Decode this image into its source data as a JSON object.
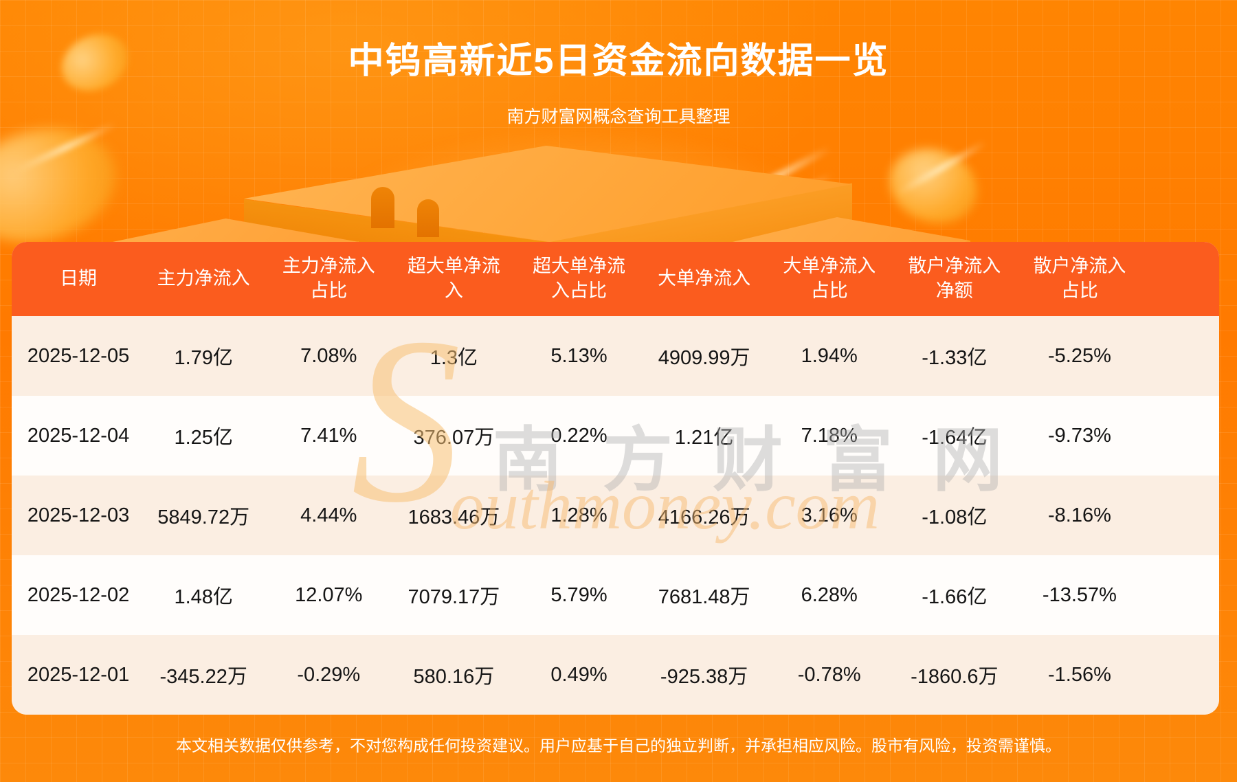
{
  "page": {
    "title": "中钨高新近5日资金流向数据一览",
    "subtitle": "南方财富网概念查询工具整理",
    "disclaimer": "本文相关数据仅供参考，不对您构成任何投资建议。用户应基于自己的独立判断，并承担相应风险。股市有风险，投资需谨慎。"
  },
  "watermark": {
    "initial": "S",
    "cn": "南方财富网",
    "en": "outhmoney.com"
  },
  "chart_data": {
    "type": "table",
    "title": "中钨高新近5日资金流向数据一览",
    "columns": [
      "日期",
      "主力净流入",
      "主力净流入占比",
      "超大单净流入",
      "超大单净流入占比",
      "大单净流入",
      "大单净流入占比",
      "散户净流入净额",
      "散户净流入占比"
    ],
    "rows": [
      [
        "2025-12-05",
        "1.79亿",
        "7.08%",
        "1.3亿",
        "5.13%",
        "4909.99万",
        "1.94%",
        "-1.33亿",
        "-5.25%"
      ],
      [
        "2025-12-04",
        "1.25亿",
        "7.41%",
        "376.07万",
        "0.22%",
        "1.21亿",
        "7.18%",
        "-1.64亿",
        "-9.73%"
      ],
      [
        "2025-12-03",
        "5849.72万",
        "4.44%",
        "1683.46万",
        "1.28%",
        "4166.26万",
        "3.16%",
        "-1.08亿",
        "-8.16%"
      ],
      [
        "2025-12-02",
        "1.48亿",
        "12.07%",
        "7079.17万",
        "5.79%",
        "7681.48万",
        "6.28%",
        "-1.66亿",
        "-13.57%"
      ],
      [
        "2025-12-01",
        "-345.22万",
        "-0.29%",
        "580.16万",
        "0.49%",
        "-925.38万",
        "-0.78%",
        "-1860.6万",
        "-1.56%"
      ]
    ]
  },
  "colors": {
    "background_orange": "#ff7c00",
    "header_bg": "#fb5c1e",
    "row_cream": "#fbeee2",
    "row_white": "#fffdfb",
    "text_dark": "#151515",
    "text_white": "#ffffff",
    "podium_gold": "#ffa035"
  }
}
